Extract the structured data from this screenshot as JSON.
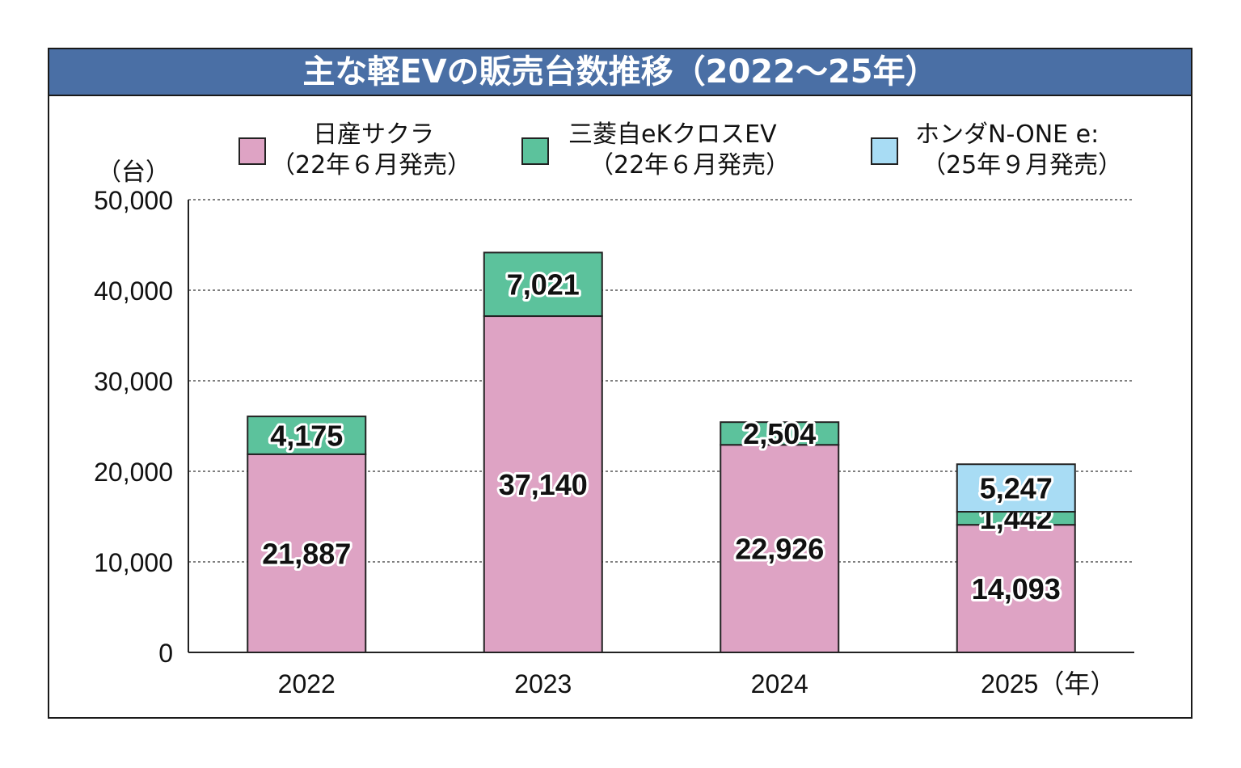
{
  "title": "主な軽EVの販売台数推移（2022〜25年）",
  "colors": {
    "title_bg": "#4a6fa5",
    "sakura": "#dea3c4",
    "ekcross": "#5cc29c",
    "none": "#a8dcf4",
    "grid": "#555555"
  },
  "legend": [
    {
      "name": "日産サクラ",
      "note": "（22年６月発売）",
      "color": "#dea3c4"
    },
    {
      "name": "三菱自eKクロスEV",
      "note": "（22年６月発売）",
      "color": "#5cc29c"
    },
    {
      "name": "ホンダN-ONE  e:",
      "note": "（25年９月発売）",
      "color": "#a8dcf4"
    }
  ],
  "chart_data": {
    "type": "bar",
    "stacked": true,
    "title": "主な軽EVの販売台数推移（2022〜25年）",
    "ylabel": "（台）",
    "xlabel": "（年）",
    "categories": [
      "2022",
      "2023",
      "2024",
      "2025"
    ],
    "category_labels": [
      "2022",
      "2023",
      "2024",
      "2025（年）"
    ],
    "ylim": [
      0,
      50000
    ],
    "yticks": [
      0,
      10000,
      20000,
      30000,
      40000,
      50000
    ],
    "ytick_labels": [
      "0",
      "10,000",
      "20,000",
      "30,000",
      "40,000",
      "50,000"
    ],
    "grid": true,
    "series": [
      {
        "name": "日産サクラ",
        "values": [
          21887,
          37140,
          22926,
          14093
        ],
        "labels": [
          "21,887",
          "37,140",
          "22,926",
          "14,093"
        ]
      },
      {
        "name": "三菱自eKクロスEV",
        "values": [
          4175,
          7021,
          2504,
          1442
        ],
        "labels": [
          "4,175",
          "7,021",
          "2,504",
          "1,442"
        ]
      },
      {
        "name": "ホンダN-ONE  e:",
        "values": [
          null,
          null,
          null,
          5247
        ],
        "labels": [
          null,
          null,
          null,
          "5,247"
        ]
      }
    ]
  }
}
